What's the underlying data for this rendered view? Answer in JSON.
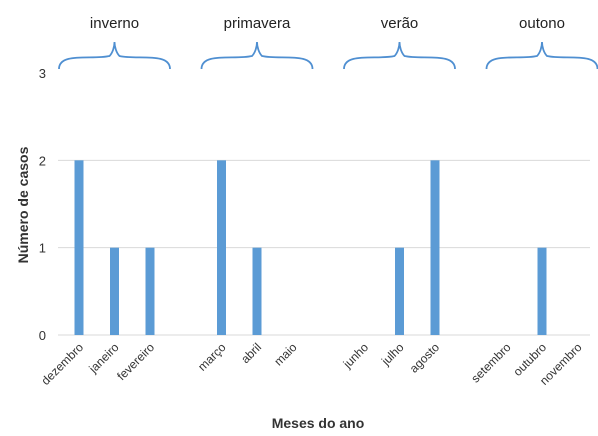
{
  "chart_data": {
    "type": "bar",
    "title": "",
    "xlabel": "Meses do ano",
    "ylabel": "Número de casos",
    "ylim": [
      0,
      3
    ],
    "yticks": [
      0,
      1,
      2,
      3
    ],
    "grid": true,
    "bar_color": "#5b9bd5",
    "categories": [
      "dezembro",
      "janeiro",
      "fevereiro",
      "março",
      "abril",
      "maio",
      "junho",
      "julho",
      "agosto",
      "setembro",
      "outubro",
      "novembro"
    ],
    "values": [
      2,
      1,
      1,
      2,
      1,
      0,
      0,
      1,
      2,
      0,
      1,
      0
    ],
    "groups": [
      {
        "label": "inverno",
        "months": [
          "dezembro",
          "janeiro",
          "fevereiro"
        ]
      },
      {
        "label": "primavera",
        "months": [
          "março",
          "abril",
          "maio"
        ]
      },
      {
        "label": "verão",
        "months": [
          "junho",
          "julho",
          "agosto"
        ]
      },
      {
        "label": "outono",
        "months": [
          "setembro",
          "outubro",
          "novembro"
        ]
      }
    ]
  }
}
